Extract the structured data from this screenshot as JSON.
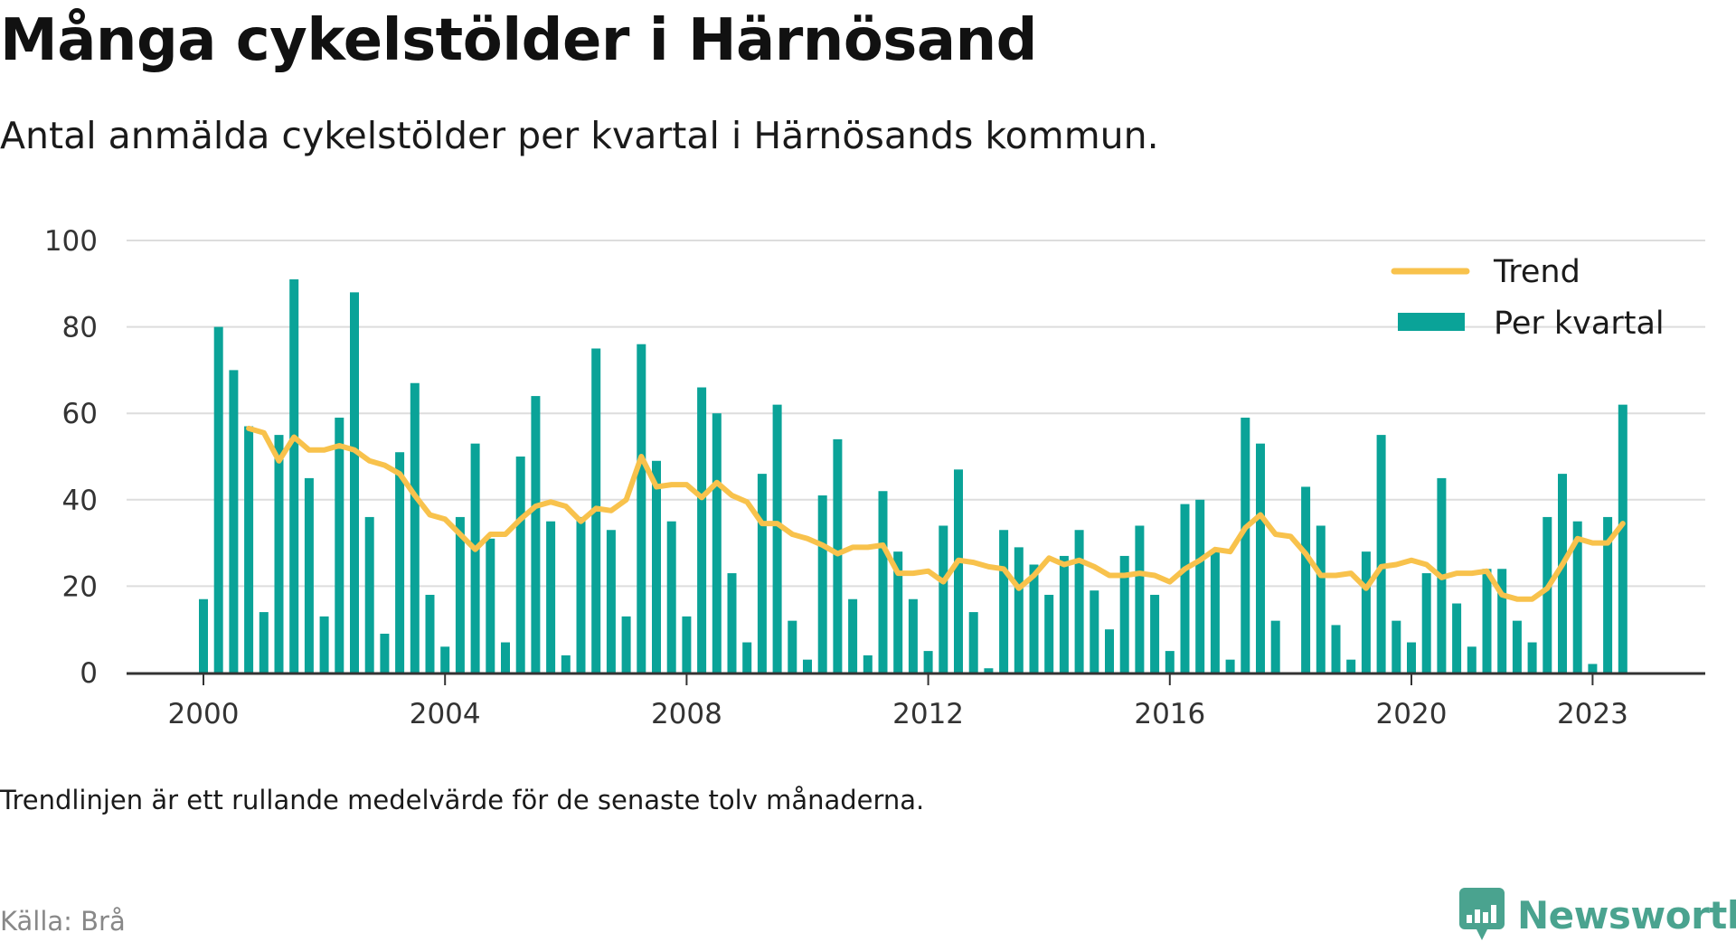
{
  "title": "Många cykelstölder i Härnösand",
  "subtitle": "Antal anmälda cykelstölder per kvartal i Härnösands kommun.",
  "note": "Trendlinjen är ett rullande medelvärde för de senaste tolv månaderna.",
  "source": "Källa: Brå",
  "brand": {
    "name": "Newsworthy",
    "icon": "newsworthy-logo-icon",
    "color": "#4aa38f"
  },
  "colors": {
    "bars": "#0aa398",
    "trend": "#f8c24c",
    "grid": "#dddddd",
    "axis": "#333333"
  },
  "chart_data": {
    "type": "bar",
    "ylim": [
      0,
      100
    ],
    "yticks": [
      0,
      20,
      40,
      60,
      80,
      100
    ],
    "xticks": [
      "2000",
      "2004",
      "2008",
      "2012",
      "2016",
      "2020",
      "2023"
    ],
    "grid": true,
    "legend_position": "top-right",
    "categories": [
      "2000 Q1",
      "2000 Q2",
      "2000 Q3",
      "2000 Q4",
      "2001 Q1",
      "2001 Q2",
      "2001 Q3",
      "2001 Q4",
      "2002 Q1",
      "2002 Q2",
      "2002 Q3",
      "2002 Q4",
      "2003 Q1",
      "2003 Q2",
      "2003 Q3",
      "2003 Q4",
      "2004 Q1",
      "2004 Q2",
      "2004 Q3",
      "2004 Q4",
      "2005 Q1",
      "2005 Q2",
      "2005 Q3",
      "2005 Q4",
      "2006 Q1",
      "2006 Q2",
      "2006 Q3",
      "2006 Q4",
      "2007 Q1",
      "2007 Q2",
      "2007 Q3",
      "2007 Q4",
      "2008 Q1",
      "2008 Q2",
      "2008 Q3",
      "2008 Q4",
      "2009 Q1",
      "2009 Q2",
      "2009 Q3",
      "2009 Q4",
      "2010 Q1",
      "2010 Q2",
      "2010 Q3",
      "2010 Q4",
      "2011 Q1",
      "2011 Q2",
      "2011 Q3",
      "2011 Q4",
      "2012 Q1",
      "2012 Q2",
      "2012 Q3",
      "2012 Q4",
      "2013 Q1",
      "2013 Q2",
      "2013 Q3",
      "2013 Q4",
      "2014 Q1",
      "2014 Q2",
      "2014 Q3",
      "2014 Q4",
      "2015 Q1",
      "2015 Q2",
      "2015 Q3",
      "2015 Q4",
      "2016 Q1",
      "2016 Q2",
      "2016 Q3",
      "2016 Q4",
      "2017 Q1",
      "2017 Q2",
      "2017 Q3",
      "2017 Q4",
      "2018 Q1",
      "2018 Q2",
      "2018 Q3",
      "2018 Q4",
      "2019 Q1",
      "2019 Q2",
      "2019 Q3",
      "2019 Q4",
      "2020 Q1",
      "2020 Q2",
      "2020 Q3",
      "2020 Q4",
      "2021 Q1",
      "2021 Q2",
      "2021 Q3",
      "2021 Q4",
      "2022 Q1",
      "2022 Q2",
      "2022 Q3",
      "2022 Q4",
      "2023 Q1",
      "2023 Q2",
      "2023 Q3"
    ],
    "series": [
      {
        "name": "Per kvartal",
        "type": "bar",
        "values": [
          17,
          80,
          70,
          57,
          14,
          55,
          91,
          45,
          13,
          59,
          88,
          36,
          9,
          51,
          67,
          18,
          6,
          36,
          53,
          31,
          7,
          50,
          64,
          35,
          4,
          36,
          75,
          33,
          13,
          76,
          49,
          35,
          13,
          66,
          60,
          23,
          7,
          46,
          62,
          12,
          3,
          41,
          54,
          17,
          4,
          42,
          28,
          17,
          5,
          34,
          47,
          14,
          1,
          33,
          29,
          25,
          18,
          27,
          33,
          19,
          10,
          27,
          34,
          18,
          5,
          39,
          40,
          28,
          3,
          59,
          53,
          12,
          0,
          43,
          34,
          11,
          3,
          28,
          55,
          12,
          7,
          23,
          45,
          16,
          6,
          24,
          24,
          12,
          7,
          36,
          46,
          35,
          2,
          36,
          62
        ]
      },
      {
        "name": "Trend",
        "type": "line",
        "values": [
          null,
          null,
          null,
          56.5,
          55.5,
          49,
          54.5,
          51.5,
          51.5,
          52.5,
          51.5,
          49,
          48,
          46,
          41,
          36.5,
          35.5,
          32,
          28.5,
          32,
          32,
          35.5,
          38.5,
          39.5,
          38.5,
          35,
          38,
          37.5,
          40,
          50,
          43,
          43.5,
          43.5,
          40.5,
          44,
          41,
          39.5,
          34.5,
          34.5,
          32,
          31,
          29.5,
          27.5,
          29,
          29,
          29.5,
          23,
          23,
          23.5,
          21,
          26,
          25.5,
          24.5,
          24,
          19.5,
          22.5,
          26.5,
          25,
          26,
          24.5,
          22.5,
          22.5,
          23,
          22.5,
          21,
          24,
          26,
          28.5,
          28,
          33.5,
          36.5,
          32,
          31.5,
          27.5,
          22.5,
          22.5,
          23,
          19.5,
          24.5,
          25,
          26,
          25,
          22,
          23,
          23,
          23.5,
          18,
          17,
          17,
          19.5,
          25,
          31,
          30,
          30,
          34.5
        ]
      }
    ]
  }
}
